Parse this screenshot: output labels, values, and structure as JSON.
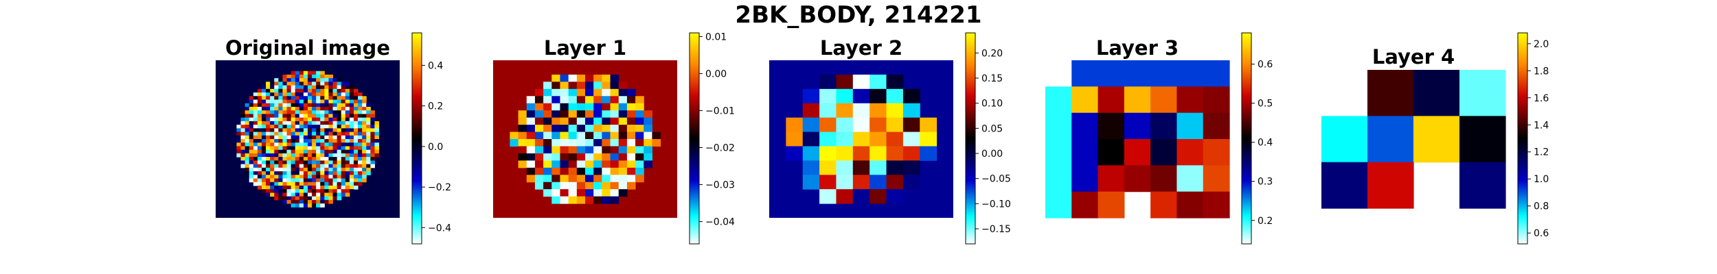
{
  "figure": {
    "title": "2BK_BODY, 214221"
  },
  "colormap": {
    "name": "blue-black-red-yellow",
    "stops": [
      {
        "t": 0.0,
        "color": "#ffffff"
      },
      {
        "t": 0.13,
        "color": "#00ffff"
      },
      {
        "t": 0.3,
        "color": "#0000cc"
      },
      {
        "t": 0.5,
        "color": "#000000"
      },
      {
        "t": 0.7,
        "color": "#cc0000"
      },
      {
        "t": 0.85,
        "color": "#ff8800"
      },
      {
        "t": 1.0,
        "color": "#ffff00"
      }
    ]
  },
  "chart_data": [
    {
      "type": "heatmap",
      "title": "Original image",
      "grid": [
        44,
        44
      ],
      "shape": "disc",
      "vmin": -0.48,
      "vmax": 0.56,
      "background_value": -0.03,
      "colorbar_ticks": [
        {
          "value": 0.4,
          "label": "0.4"
        },
        {
          "value": 0.2,
          "label": "0.2"
        },
        {
          "value": 0.0,
          "label": "0.0"
        },
        {
          "value": -0.2,
          "label": "−0.2"
        },
        {
          "value": -0.4,
          "label": "−0.4"
        }
      ]
    },
    {
      "type": "heatmap",
      "title": "Layer 1",
      "grid": [
        22,
        22
      ],
      "shape": "disc",
      "vmin": -0.046,
      "vmax": 0.011,
      "background_value": -0.009,
      "colorbar_ticks": [
        {
          "value": 0.01,
          "label": "0.01"
        },
        {
          "value": 0.0,
          "label": "0.00"
        },
        {
          "value": -0.01,
          "label": "−0.01"
        },
        {
          "value": -0.02,
          "label": "−0.02"
        },
        {
          "value": -0.03,
          "label": "−0.03"
        },
        {
          "value": -0.04,
          "label": "−0.04"
        }
      ]
    },
    {
      "type": "heatmap",
      "title": "Layer 2",
      "grid": [
        11,
        11
      ],
      "shape": "disc",
      "vmin": -0.18,
      "vmax": 0.24,
      "background_value": -0.03,
      "colorbar_ticks": [
        {
          "value": 0.2,
          "label": "0.20"
        },
        {
          "value": 0.15,
          "label": "0.15"
        },
        {
          "value": 0.1,
          "label": "0.10"
        },
        {
          "value": 0.05,
          "label": "0.05"
        },
        {
          "value": 0.0,
          "label": "0.00"
        },
        {
          "value": -0.05,
          "label": "−0.05"
        },
        {
          "value": -0.1,
          "label": "−0.10"
        },
        {
          "value": -0.15,
          "label": "−0.15"
        }
      ]
    },
    {
      "type": "heatmap",
      "title": "Layer 3",
      "grid": [
        7,
        7
      ],
      "vmin": 0.14,
      "vmax": 0.68,
      "values": [
        [
          null,
          0.28,
          0.28,
          0.28,
          0.28,
          0.28,
          0.28
        ],
        [
          0.2,
          0.64,
          0.5,
          0.63,
          0.58,
          0.49,
          0.48
        ],
        [
          0.2,
          0.31,
          0.42,
          0.31,
          0.36,
          0.23,
          0.47
        ],
        [
          0.2,
          0.31,
          0.41,
          0.52,
          0.38,
          0.53,
          0.55
        ],
        [
          0.2,
          0.31,
          0.51,
          0.49,
          0.47,
          0.17,
          0.56
        ],
        [
          0.2,
          0.49,
          0.56,
          null,
          0.54,
          0.48,
          0.49
        ]
      ],
      "colorbar_ticks": [
        {
          "value": 0.6,
          "label": "0.6"
        },
        {
          "value": 0.5,
          "label": "0.5"
        },
        {
          "value": 0.4,
          "label": "0.4"
        },
        {
          "value": 0.3,
          "label": "0.3"
        },
        {
          "value": 0.2,
          "label": "0.2"
        }
      ]
    },
    {
      "type": "heatmap",
      "title": "Layer 4",
      "grid": [
        4,
        4
      ],
      "vmin": 0.52,
      "vmax": 2.08,
      "values": [
        [
          null,
          1.4,
          1.2,
          0.64
        ],
        [
          0.72,
          0.9,
          2.0,
          1.28
        ],
        [
          1.12,
          1.62,
          null,
          1.12
        ]
      ],
      "colorbar_ticks": [
        {
          "value": 2.0,
          "label": "2.0"
        },
        {
          "value": 1.8,
          "label": "1.8"
        },
        {
          "value": 1.6,
          "label": "1.6"
        },
        {
          "value": 1.4,
          "label": "1.4"
        },
        {
          "value": 1.2,
          "label": "1.2"
        },
        {
          "value": 1.0,
          "label": "1.0"
        },
        {
          "value": 0.8,
          "label": "0.8"
        },
        {
          "value": 0.6,
          "label": "0.6"
        }
      ]
    }
  ]
}
